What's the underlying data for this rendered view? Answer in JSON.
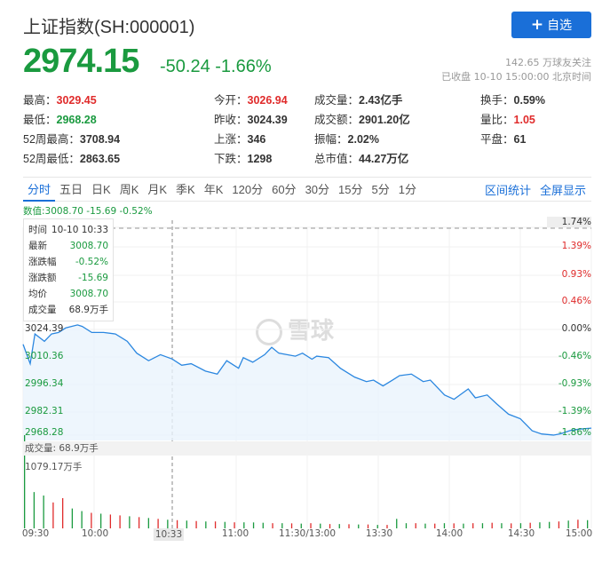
{
  "header": {
    "title": "上证指数(SH:000001)",
    "add_button": "自选",
    "add_icon": "plus-icon",
    "price": "2974.15",
    "change": "-50.24 -1.66%",
    "followers": "142.65 万球友关注",
    "status": "已收盘 10-10 15:00:00 北京时间"
  },
  "stats": [
    {
      "label": "最高：",
      "value": "3029.45",
      "color": "red"
    },
    {
      "label": "今开：",
      "value": "3026.94",
      "color": "red"
    },
    {
      "label": "成交量：",
      "value": "2.43亿手",
      "color": ""
    },
    {
      "label": "换手：",
      "value": "0.59%",
      "color": ""
    },
    {
      "label": "最低：",
      "value": "2968.28",
      "color": "green"
    },
    {
      "label": "昨收：",
      "value": "3024.39",
      "color": ""
    },
    {
      "label": "成交额：",
      "value": "2901.20亿",
      "color": ""
    },
    {
      "label": "量比：",
      "value": "1.05",
      "color": "red"
    },
    {
      "label": "52周最高：",
      "value": "3708.94",
      "color": ""
    },
    {
      "label": "上涨：",
      "value": "346",
      "color": ""
    },
    {
      "label": "振幅：",
      "value": "2.02%",
      "color": ""
    },
    {
      "label": "平盘：",
      "value": "61",
      "color": ""
    },
    {
      "label": "52周最低：",
      "value": "2863.65",
      "color": ""
    },
    {
      "label": "下跌：",
      "value": "1298",
      "color": ""
    },
    {
      "label": "总市值：",
      "value": "44.27万亿",
      "color": ""
    }
  ],
  "tabs": [
    "分时",
    "五日",
    "日K",
    "周K",
    "月K",
    "季K",
    "年K",
    "120分",
    "60分",
    "30分",
    "15分",
    "5分",
    "1分"
  ],
  "active_tab": "分时",
  "tabs_right": [
    "区间统计",
    "全屏显示"
  ],
  "values_line": "数值:3008.70 -15.69 -0.52%",
  "tooltip": [
    {
      "label": "时间",
      "value": "10-10 10:33"
    },
    {
      "label": "最新",
      "value": "3008.70"
    },
    {
      "label": "涨跌幅",
      "value": "-0.52%"
    },
    {
      "label": "涨跌额",
      "value": "-15.69"
    },
    {
      "label": "均价",
      "value": "3008.70"
    },
    {
      "label": "成交量",
      "value": "68.9万手"
    }
  ],
  "watermark": "雪球",
  "colors": {
    "up": "#e02b2b",
    "down": "#1a9a3f",
    "line": "#2b87e0",
    "accent": "#1a6fd8"
  },
  "chart_data": {
    "type": "line",
    "prev_close": 3024.39,
    "left_ticks": [
      "3024.39",
      "3010.36",
      "2996.34",
      "2982.31",
      "2968.28"
    ],
    "right_ticks": [
      "1.74%",
      "1.39%",
      "0.93%",
      "0.46%",
      "0.00%",
      "-0.46%",
      "-0.93%",
      "-1.39%",
      "-1.86%"
    ],
    "x_labels": [
      "09:30",
      "10:00",
      "10:33",
      "11:00",
      "11:30/13:00",
      "13:30",
      "14:00",
      "14:30",
      "15:00"
    ],
    "crosshair_label": "10:33",
    "price": [
      [
        0,
        3016.5
      ],
      [
        3,
        3006.2
      ],
      [
        5,
        3022
      ],
      [
        9,
        3018.1
      ],
      [
        12,
        3022
      ],
      [
        15,
        3022.8
      ],
      [
        18,
        3025.2
      ],
      [
        23,
        3026.8
      ],
      [
        25,
        3026
      ],
      [
        29,
        3022.8
      ],
      [
        34,
        3022.8
      ],
      [
        39,
        3022
      ],
      [
        44,
        3018.1
      ],
      [
        48,
        3011.8
      ],
      [
        53,
        3007.8
      ],
      [
        58,
        3011
      ],
      [
        63,
        3008.7
      ],
      [
        67,
        3005.4
      ],
      [
        71,
        3006.2
      ],
      [
        77,
        3002.3
      ],
      [
        82,
        3000.7
      ],
      [
        86,
        3007.8
      ],
      [
        91,
        3003.8
      ],
      [
        93,
        3009.4
      ],
      [
        97,
        3007
      ],
      [
        102,
        3011
      ],
      [
        105,
        3014.9
      ],
      [
        108,
        3011.8
      ],
      [
        115,
        3010.2
      ],
      [
        118,
        3011.8
      ],
      [
        122,
        3008.6
      ],
      [
        124,
        3010.2
      ],
      [
        129,
        3009.4
      ],
      [
        134,
        3003.8
      ],
      [
        140,
        2999.1
      ],
      [
        145,
        2996.7
      ],
      [
        148,
        2997.5
      ],
      [
        152,
        2994.4
      ],
      [
        156,
        2997.5
      ],
      [
        159,
        2999.9
      ],
      [
        164,
        3000.7
      ],
      [
        169,
        2996.7
      ],
      [
        172,
        2997.5
      ],
      [
        178,
        2989.6
      ],
      [
        182,
        2987.3
      ],
      [
        188,
        2992.8
      ],
      [
        191,
        2988.1
      ],
      [
        196,
        2989.6
      ],
      [
        200,
        2984.9
      ],
      [
        205,
        2979.4
      ],
      [
        210,
        2977
      ],
      [
        215,
        2970.6
      ],
      [
        219,
        2968.9
      ],
      [
        224,
        2968.3
      ],
      [
        227,
        2969
      ],
      [
        231,
        2970.7
      ],
      [
        235,
        2971.5
      ],
      [
        240,
        2972
      ]
    ],
    "volume_label": "成交量: 68.9万手",
    "volume_max_label": "1079.17万手",
    "volume_max": 1079.17,
    "volume": [
      [
        1079,
        "g"
      ],
      [
        420,
        "g"
      ],
      [
        380,
        "g"
      ],
      [
        300,
        "r"
      ],
      [
        350,
        "r"
      ],
      [
        230,
        "g"
      ],
      [
        200,
        "g"
      ],
      [
        180,
        "r"
      ],
      [
        170,
        "g"
      ],
      [
        160,
        "r"
      ],
      [
        150,
        "r"
      ],
      [
        140,
        "g"
      ],
      [
        130,
        "r"
      ],
      [
        120,
        "g"
      ],
      [
        110,
        "r"
      ],
      [
        100,
        "g"
      ],
      [
        95,
        "r"
      ],
      [
        90,
        "g"
      ],
      [
        85,
        "r"
      ],
      [
        80,
        "g"
      ],
      [
        80,
        "r"
      ],
      [
        75,
        "g"
      ],
      [
        70,
        "r"
      ],
      [
        70,
        "g"
      ],
      [
        68.9,
        "g"
      ],
      [
        65,
        "g"
      ],
      [
        60,
        "r"
      ],
      [
        60,
        "g"
      ],
      [
        58,
        "r"
      ],
      [
        55,
        "g"
      ],
      [
        60,
        "r"
      ],
      [
        55,
        "g"
      ],
      [
        50,
        "r"
      ],
      [
        50,
        "g"
      ],
      [
        48,
        "r"
      ],
      [
        45,
        "g"
      ],
      [
        45,
        "r"
      ],
      [
        40,
        "g"
      ],
      [
        40,
        "r"
      ],
      [
        110,
        "g"
      ],
      [
        60,
        "g"
      ],
      [
        60,
        "r"
      ],
      [
        55,
        "g"
      ],
      [
        55,
        "r"
      ],
      [
        60,
        "g"
      ],
      [
        58,
        "r"
      ],
      [
        55,
        "g"
      ],
      [
        60,
        "r"
      ],
      [
        60,
        "g"
      ],
      [
        65,
        "r"
      ],
      [
        60,
        "g"
      ],
      [
        58,
        "r"
      ],
      [
        60,
        "g"
      ],
      [
        65,
        "r"
      ],
      [
        70,
        "g"
      ],
      [
        75,
        "g"
      ],
      [
        80,
        "r"
      ],
      [
        90,
        "g"
      ],
      [
        100,
        "r"
      ],
      [
        95,
        "g"
      ]
    ]
  }
}
